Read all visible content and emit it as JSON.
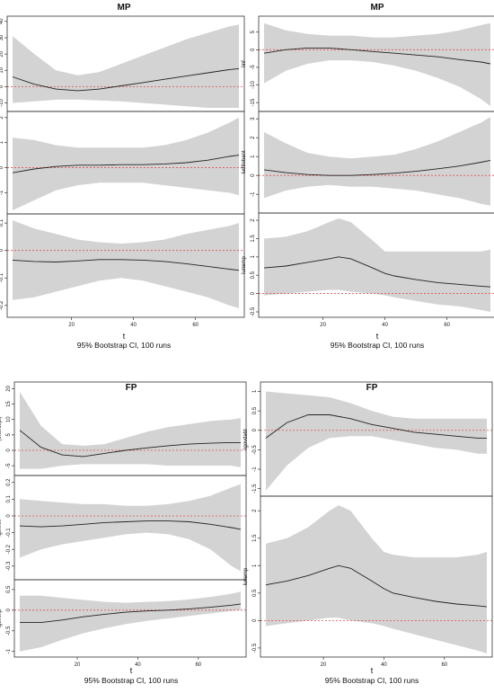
{
  "chart_data": [
    {
      "type": "line",
      "title": "MP",
      "xlabel": "t",
      "caption": "95% Bootstrap CI, 100 runs",
      "xlim": [
        1,
        74
      ],
      "xticks": [
        20,
        40,
        60
      ],
      "panels": [
        {
          "ylabel": "(Intercept)",
          "ylim": [
            -13,
            41
          ],
          "yticks": [
            -10,
            0,
            10,
            20,
            30,
            40
          ],
          "x": [
            1,
            8,
            15,
            22,
            29,
            36,
            43,
            50,
            57,
            64,
            71,
            74
          ],
          "estimate": [
            6,
            1.5,
            -1.5,
            -2.5,
            -1.5,
            0.5,
            2.5,
            4.5,
            6.5,
            8.5,
            10.5,
            11
          ],
          "lower": [
            -10,
            -9,
            -8,
            -8,
            -8.5,
            -9,
            -10,
            -11,
            -12,
            -13,
            -13,
            -13
          ],
          "upper": [
            31,
            20,
            10,
            7,
            9,
            14,
            19,
            24,
            29,
            33,
            37,
            38
          ]
        },
        {
          "ylabel": "lm2",
          "ylim": [
            -1.7,
            2.1
          ],
          "yticks": [
            -1,
            0,
            1,
            2
          ],
          "x": [
            1,
            8,
            15,
            22,
            29,
            36,
            43,
            50,
            57,
            64,
            71,
            74
          ],
          "estimate": [
            -0.2,
            -0.05,
            0.05,
            0.1,
            0.1,
            0.12,
            0.12,
            0.15,
            0.2,
            0.3,
            0.45,
            0.5
          ],
          "lower": [
            -1.7,
            -1.3,
            -0.9,
            -0.7,
            -0.6,
            -0.6,
            -0.6,
            -0.7,
            -0.8,
            -0.9,
            -1.0,
            -1.1
          ],
          "upper": [
            1.2,
            1.1,
            0.9,
            0.8,
            0.8,
            0.8,
            0.8,
            0.9,
            1.1,
            1.4,
            1.8,
            2.0
          ]
        },
        {
          "ylabel": "lpcra",
          "ylim": [
            -0.23,
            0.12
          ],
          "yticks": [
            -0.2,
            -0.1,
            0,
            0.1
          ],
          "x": [
            1,
            8,
            15,
            22,
            29,
            36,
            43,
            50,
            57,
            64,
            71,
            74
          ],
          "estimate": [
            -0.035,
            -0.04,
            -0.042,
            -0.038,
            -0.033,
            -0.033,
            -0.035,
            -0.04,
            -0.048,
            -0.058,
            -0.068,
            -0.072
          ],
          "lower": [
            -0.18,
            -0.17,
            -0.15,
            -0.13,
            -0.11,
            -0.1,
            -0.11,
            -0.13,
            -0.15,
            -0.17,
            -0.2,
            -0.21
          ],
          "upper": [
            0.11,
            0.08,
            0.06,
            0.04,
            0.03,
            0.025,
            0.03,
            0.04,
            0.06,
            0.075,
            0.09,
            0.1
          ]
        }
      ]
    },
    {
      "type": "line",
      "title": "MP",
      "xlabel": "t",
      "caption": "95% Bootstrap CI, 100 runs",
      "xlim": [
        1,
        74
      ],
      "xticks": [
        20,
        40,
        60
      ],
      "panels": [
        {
          "ylabel": "linf",
          "ylim": [
            -16.5,
            8.5
          ],
          "yticks": [
            -15,
            -10,
            -5,
            0,
            5
          ],
          "x": [
            1,
            8,
            15,
            22,
            29,
            36,
            43,
            50,
            57,
            64,
            71,
            74
          ],
          "estimate": [
            -1,
            0,
            0.5,
            0.5,
            0,
            -0.5,
            -1,
            -1.5,
            -2,
            -2.8,
            -3.5,
            -4
          ],
          "lower": [
            -9.5,
            -6,
            -4,
            -3,
            -3,
            -3.5,
            -4.5,
            -6,
            -8,
            -10.5,
            -14,
            -16
          ],
          "upper": [
            7.5,
            5.5,
            4.5,
            4,
            4,
            3.5,
            3.5,
            4,
            4.5,
            5.5,
            7,
            7.5
          ]
        },
        {
          "ylabel": "ludtlobant",
          "ylim": [
            -1.8,
            3.2
          ],
          "yticks": [
            -1,
            0,
            1,
            2,
            3
          ],
          "x": [
            1,
            8,
            15,
            22,
            29,
            36,
            43,
            50,
            57,
            64,
            71,
            74
          ],
          "estimate": [
            0.3,
            0.15,
            0.05,
            0,
            0,
            0.05,
            0.12,
            0.22,
            0.35,
            0.5,
            0.7,
            0.8
          ],
          "lower": [
            -1.2,
            -0.8,
            -0.6,
            -0.5,
            -0.6,
            -0.6,
            -0.7,
            -0.8,
            -1.0,
            -1.2,
            -1.5,
            -1.6
          ],
          "upper": [
            2.3,
            1.7,
            1.2,
            1.0,
            0.9,
            1.0,
            1.1,
            1.4,
            1.8,
            2.3,
            2.8,
            3.1
          ]
        },
        {
          "ylabel": "lunemp",
          "ylim": [
            -0.55,
            2.1
          ],
          "yticks": [
            -0.5,
            0,
            0.5,
            1,
            1.5,
            2
          ],
          "x": [
            1,
            8,
            15,
            22,
            25,
            29,
            36,
            40,
            43,
            50,
            57,
            64,
            71,
            74
          ],
          "estimate": [
            0.7,
            0.75,
            0.85,
            0.95,
            1.0,
            0.95,
            0.7,
            0.55,
            0.48,
            0.38,
            0.3,
            0.25,
            0.2,
            0.18
          ],
          "lower": [
            -0.05,
            0.0,
            0.05,
            0.1,
            0.1,
            0.05,
            0.0,
            -0.05,
            -0.1,
            -0.2,
            -0.3,
            -0.35,
            -0.45,
            -0.5
          ],
          "upper": [
            1.5,
            1.55,
            1.7,
            1.95,
            2.05,
            1.95,
            1.45,
            1.15,
            1.15,
            1.15,
            1.15,
            1.15,
            1.15,
            1.2
          ]
        }
      ]
    },
    {
      "type": "line",
      "title": "FP",
      "xlabel": "t",
      "caption": "95% Bootstrap CI, 100 runs",
      "xlim": [
        1,
        74
      ],
      "xticks": [
        20,
        40,
        60
      ],
      "panels": [
        {
          "ylabel": "(Intercept)",
          "ylim": [
            -7,
            21
          ],
          "yticks": [
            -5,
            0,
            5,
            10,
            15,
            20
          ],
          "x": [
            1,
            8,
            15,
            22,
            29,
            36,
            43,
            50,
            57,
            64,
            71,
            74
          ],
          "estimate": [
            6.5,
            1,
            -1.5,
            -2,
            -1,
            0,
            0.8,
            1.5,
            2,
            2.3,
            2.5,
            2.5
          ],
          "lower": [
            -6,
            -6,
            -5,
            -4.5,
            -4.5,
            -4.5,
            -4.5,
            -5,
            -5,
            -5,
            -5,
            -5.5
          ],
          "upper": [
            19,
            8,
            2,
            1.5,
            2,
            4,
            6,
            7.5,
            8.5,
            9.5,
            10,
            10.5
          ]
        },
        {
          "ylabel": "lgovrev",
          "ylim": [
            -0.36,
            0.22
          ],
          "yticks": [
            -0.3,
            -0.2,
            -0.1,
            0,
            0.1,
            0.2
          ],
          "x": [
            1,
            8,
            15,
            22,
            29,
            36,
            43,
            50,
            57,
            64,
            71,
            74
          ],
          "estimate": [
            -0.06,
            -0.065,
            -0.06,
            -0.05,
            -0.04,
            -0.035,
            -0.03,
            -0.03,
            -0.035,
            -0.05,
            -0.07,
            -0.08
          ],
          "lower": [
            -0.25,
            -0.2,
            -0.17,
            -0.15,
            -0.13,
            -0.11,
            -0.1,
            -0.11,
            -0.14,
            -0.2,
            -0.3,
            -0.33
          ],
          "upper": [
            0.1,
            0.09,
            0.08,
            0.07,
            0.07,
            0.06,
            0.06,
            0.07,
            0.09,
            0.12,
            0.17,
            0.19
          ]
        },
        {
          "ylabel": "lgovexp",
          "ylim": [
            -1.05,
            0.65
          ],
          "yticks": [
            -1,
            -0.5,
            0,
            0.5
          ],
          "x": [
            1,
            8,
            15,
            22,
            29,
            36,
            43,
            50,
            57,
            64,
            71,
            74
          ],
          "estimate": [
            -0.3,
            -0.3,
            -0.24,
            -0.16,
            -0.1,
            -0.05,
            -0.02,
            0,
            0.03,
            0.07,
            0.12,
            0.15
          ],
          "lower": [
            -1.0,
            -0.9,
            -0.72,
            -0.56,
            -0.44,
            -0.34,
            -0.26,
            -0.2,
            -0.14,
            -0.08,
            -0.02,
            0.0
          ],
          "upper": [
            0.35,
            0.35,
            0.3,
            0.25,
            0.2,
            0.18,
            0.2,
            0.22,
            0.26,
            0.32,
            0.4,
            0.45
          ]
        }
      ]
    },
    {
      "type": "line",
      "title": "FP",
      "xlabel": "t",
      "caption": "95% Bootstrap CI, 100 runs",
      "xlim": [
        1,
        74
      ],
      "xticks": [
        20,
        40,
        60
      ],
      "panels": [
        {
          "ylabel": "lgovdebt",
          "ylim": [
            -1.6,
            1.15
          ],
          "yticks": [
            -1.5,
            -1,
            -0.5,
            0,
            0.5,
            1
          ],
          "x": [
            1,
            8,
            15,
            22,
            29,
            36,
            43,
            50,
            57,
            64,
            71,
            74
          ],
          "estimate": [
            -0.2,
            0.2,
            0.4,
            0.4,
            0.3,
            0.15,
            0.05,
            -0.05,
            -0.1,
            -0.15,
            -0.2,
            -0.2
          ],
          "lower": [
            -1.55,
            -0.9,
            -0.45,
            -0.2,
            -0.15,
            -0.15,
            -0.25,
            -0.35,
            -0.45,
            -0.5,
            -0.6,
            -0.6
          ],
          "upper": [
            1.0,
            0.95,
            0.9,
            0.85,
            0.7,
            0.5,
            0.35,
            0.3,
            0.3,
            0.3,
            0.3,
            0.3
          ]
        },
        {
          "ylabel": "lunemp",
          "ylim": [
            -0.6,
            2.2
          ],
          "yticks": [
            -0.5,
            0,
            0.5,
            1,
            1.5,
            2
          ],
          "x": [
            1,
            8,
            15,
            22,
            25,
            29,
            36,
            40,
            43,
            50,
            57,
            64,
            71,
            74
          ],
          "estimate": [
            0.65,
            0.72,
            0.82,
            0.95,
            1.0,
            0.95,
            0.72,
            0.58,
            0.5,
            0.42,
            0.35,
            0.3,
            0.27,
            0.25
          ],
          "lower": [
            -0.1,
            -0.05,
            0.0,
            0.05,
            0.05,
            0.0,
            -0.05,
            -0.1,
            -0.15,
            -0.25,
            -0.35,
            -0.45,
            -0.55,
            -0.6
          ],
          "upper": [
            1.4,
            1.5,
            1.7,
            2.0,
            2.1,
            2.0,
            1.5,
            1.25,
            1.2,
            1.15,
            1.15,
            1.15,
            1.2,
            1.25
          ]
        }
      ]
    }
  ]
}
